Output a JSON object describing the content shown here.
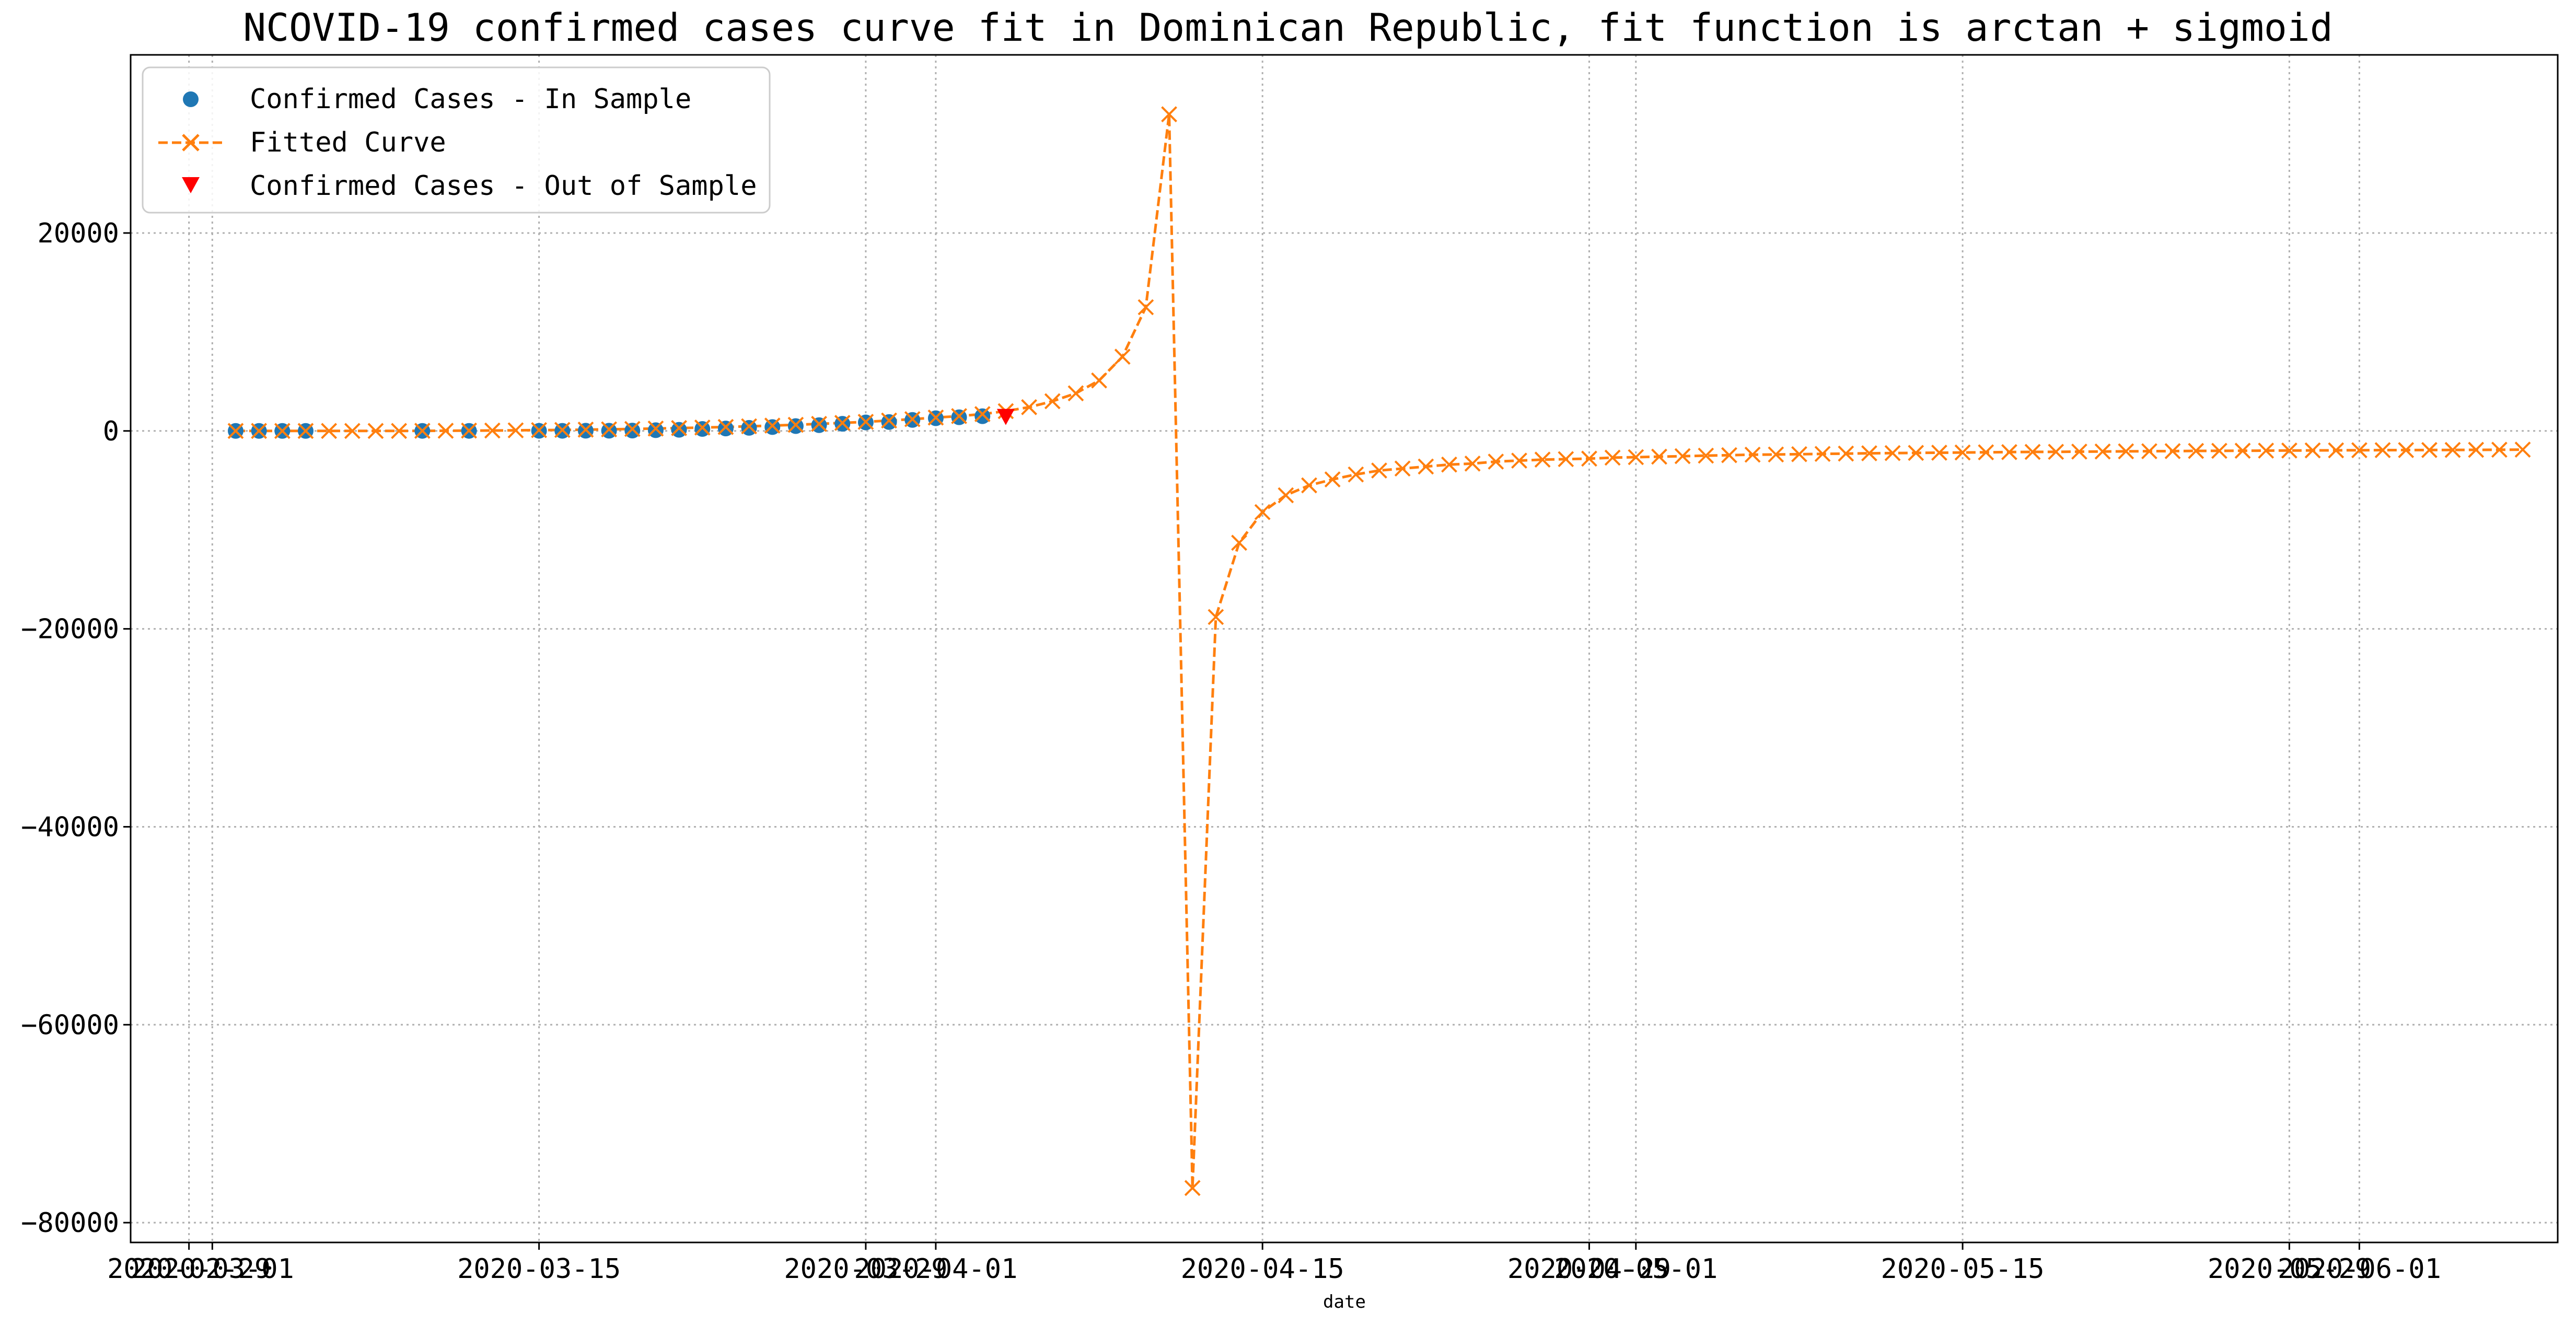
{
  "chart_data": {
    "type": "line",
    "title": "NCOVID-19 confirmed cases curve fit in Dominican Republic, fit function is arctan + sigmoid",
    "xlabel": "date",
    "ylabel": "",
    "ylim": [
      -82000,
      38000
    ],
    "xlim_days": [
      -3.5,
      100.5
    ],
    "grid": true,
    "legend_position": "top-left",
    "colors": {
      "in_sample": "#1f77b4",
      "fitted": "#ff7f0e",
      "out_sample": "#ff0000"
    },
    "x_ticks": [
      {
        "label": "2020-03-01",
        "day": 0
      },
      {
        "label": "2020-03-15",
        "day": 14
      },
      {
        "label": "2020-04-01",
        "day": 31
      },
      {
        "label": "2020-04-15",
        "day": 45
      },
      {
        "label": "2020-05-01",
        "day": 61
      },
      {
        "label": "2020-05-15",
        "day": 75
      },
      {
        "label": "2020-06-01",
        "day": 92
      },
      {
        "label": "2020-02-29",
        "day": -1
      },
      {
        "label": "2020-03-29",
        "day": 28
      },
      {
        "label": "2020-04-29",
        "day": 59
      },
      {
        "label": "2020-05-29",
        "day": 89
      }
    ],
    "y_ticks": [
      {
        "label": "20000",
        "value": 20000
      },
      {
        "label": "0",
        "value": 0
      },
      {
        "label": "−20000",
        "value": -20000
      },
      {
        "label": "−40000",
        "value": -40000
      },
      {
        "label": "−60000",
        "value": -60000
      },
      {
        "label": "−80000",
        "value": -80000
      }
    ],
    "series": [
      {
        "name": "Confirmed Cases - In Sample",
        "marker": "circle",
        "points": [
          {
            "x": 1,
            "y": 1
          },
          {
            "x": 2,
            "y": 1
          },
          {
            "x": 3,
            "y": 1
          },
          {
            "x": 4,
            "y": 1
          },
          {
            "x": 9,
            "y": 5
          },
          {
            "x": 11,
            "y": 5
          },
          {
            "x": 14,
            "y": 11
          },
          {
            "x": 15,
            "y": 11
          },
          {
            "x": 16,
            "y": 21
          },
          {
            "x": 17,
            "y": 21
          },
          {
            "x": 18,
            "y": 34
          },
          {
            "x": 19,
            "y": 72
          },
          {
            "x": 20,
            "y": 112
          },
          {
            "x": 21,
            "y": 202
          },
          {
            "x": 22,
            "y": 245
          },
          {
            "x": 23,
            "y": 312
          },
          {
            "x": 24,
            "y": 392
          },
          {
            "x": 25,
            "y": 488
          },
          {
            "x": 26,
            "y": 581
          },
          {
            "x": 27,
            "y": 719
          },
          {
            "x": 28,
            "y": 859
          },
          {
            "x": 29,
            "y": 901
          },
          {
            "x": 30,
            "y": 1109
          },
          {
            "x": 31,
            "y": 1284
          },
          {
            "x": 32,
            "y": 1380
          },
          {
            "x": 33,
            "y": 1488
          }
        ]
      },
      {
        "name": "Fitted Curve",
        "marker": "x",
        "points": [
          {
            "x": 1,
            "y": 0
          },
          {
            "x": 2,
            "y": 0
          },
          {
            "x": 3,
            "y": 0
          },
          {
            "x": 4,
            "y": 0
          },
          {
            "x": 5,
            "y": 0
          },
          {
            "x": 6,
            "y": 0
          },
          {
            "x": 7,
            "y": 0
          },
          {
            "x": 8,
            "y": 0
          },
          {
            "x": 9,
            "y": 10
          },
          {
            "x": 10,
            "y": 20
          },
          {
            "x": 11,
            "y": 30
          },
          {
            "x": 12,
            "y": 40
          },
          {
            "x": 13,
            "y": 60
          },
          {
            "x": 14,
            "y": 80
          },
          {
            "x": 15,
            "y": 100
          },
          {
            "x": 16,
            "y": 130
          },
          {
            "x": 17,
            "y": 160
          },
          {
            "x": 18,
            "y": 200
          },
          {
            "x": 19,
            "y": 240
          },
          {
            "x": 20,
            "y": 290
          },
          {
            "x": 21,
            "y": 340
          },
          {
            "x": 22,
            "y": 400
          },
          {
            "x": 23,
            "y": 470
          },
          {
            "x": 24,
            "y": 540
          },
          {
            "x": 25,
            "y": 620
          },
          {
            "x": 26,
            "y": 710
          },
          {
            "x": 27,
            "y": 810
          },
          {
            "x": 28,
            "y": 920
          },
          {
            "x": 29,
            "y": 1050
          },
          {
            "x": 30,
            "y": 1190
          },
          {
            "x": 31,
            "y": 1350
          },
          {
            "x": 32,
            "y": 1500
          },
          {
            "x": 33,
            "y": 1700
          },
          {
            "x": 34,
            "y": 2000
          },
          {
            "x": 35,
            "y": 2400
          },
          {
            "x": 36,
            "y": 3000
          },
          {
            "x": 37,
            "y": 3800
          },
          {
            "x": 38,
            "y": 5100
          },
          {
            "x": 39,
            "y": 7500
          },
          {
            "x": 40,
            "y": 12500
          },
          {
            "x": 41,
            "y": 32000
          },
          {
            "x": 42,
            "y": -76500
          },
          {
            "x": 43,
            "y": -18800
          },
          {
            "x": 44,
            "y": -11300
          },
          {
            "x": 45,
            "y": -8200
          },
          {
            "x": 46,
            "y": -6500
          },
          {
            "x": 47,
            "y": -5500
          },
          {
            "x": 48,
            "y": -4900
          },
          {
            "x": 49,
            "y": -4400
          },
          {
            "x": 50,
            "y": -4000
          },
          {
            "x": 51,
            "y": -3800
          },
          {
            "x": 52,
            "y": -3600
          },
          {
            "x": 53,
            "y": -3400
          },
          {
            "x": 54,
            "y": -3300
          },
          {
            "x": 55,
            "y": -3100
          },
          {
            "x": 56,
            "y": -3000
          },
          {
            "x": 57,
            "y": -2900
          },
          {
            "x": 58,
            "y": -2850
          },
          {
            "x": 59,
            "y": -2800
          },
          {
            "x": 60,
            "y": -2700
          },
          {
            "x": 61,
            "y": -2650
          },
          {
            "x": 62,
            "y": -2600
          },
          {
            "x": 63,
            "y": -2550
          },
          {
            "x": 64,
            "y": -2500
          },
          {
            "x": 65,
            "y": -2450
          },
          {
            "x": 66,
            "y": -2400
          },
          {
            "x": 67,
            "y": -2380
          },
          {
            "x": 68,
            "y": -2350
          },
          {
            "x": 69,
            "y": -2320
          },
          {
            "x": 70,
            "y": -2290
          },
          {
            "x": 71,
            "y": -2260
          },
          {
            "x": 72,
            "y": -2240
          },
          {
            "x": 73,
            "y": -2220
          },
          {
            "x": 74,
            "y": -2200
          },
          {
            "x": 75,
            "y": -2180
          },
          {
            "x": 76,
            "y": -2160
          },
          {
            "x": 77,
            "y": -2140
          },
          {
            "x": 78,
            "y": -2120
          },
          {
            "x": 79,
            "y": -2110
          },
          {
            "x": 80,
            "y": -2090
          },
          {
            "x": 81,
            "y": -2080
          },
          {
            "x": 82,
            "y": -2060
          },
          {
            "x": 83,
            "y": -2050
          },
          {
            "x": 84,
            "y": -2040
          },
          {
            "x": 85,
            "y": -2020
          },
          {
            "x": 86,
            "y": -2010
          },
          {
            "x": 87,
            "y": -2000
          },
          {
            "x": 88,
            "y": -1990
          },
          {
            "x": 89,
            "y": -1980
          },
          {
            "x": 90,
            "y": -1970
          },
          {
            "x": 91,
            "y": -1960
          },
          {
            "x": 92,
            "y": -1950
          },
          {
            "x": 93,
            "y": -1940
          },
          {
            "x": 94,
            "y": -1935
          },
          {
            "x": 95,
            "y": -1930
          },
          {
            "x": 96,
            "y": -1920
          },
          {
            "x": 97,
            "y": -1910
          },
          {
            "x": 98,
            "y": -1900
          },
          {
            "x": 99,
            "y": -1890
          }
        ]
      },
      {
        "name": "Confirmed Cases - Out of Sample",
        "marker": "triangle-down",
        "points": [
          {
            "x": 34,
            "y": 1488
          }
        ]
      }
    ]
  }
}
